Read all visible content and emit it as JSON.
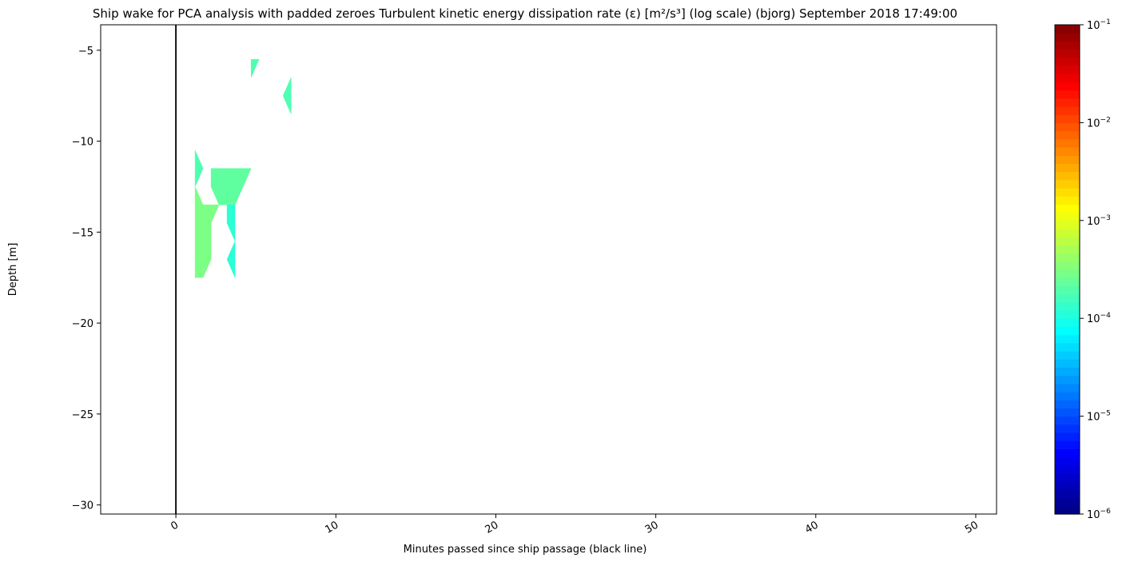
{
  "chart_data": {
    "type": "heatmap",
    "title": "Ship wake for PCA analysis with padded zeroes Turbulent kinetic energy dissipation rate (ε) [m²/s³] (log scale) (bjorg) September 2018 17:49:00",
    "xlabel": "Minutes passed since ship passage (black line)",
    "ylabel": "Depth [m]",
    "xlim": [
      -4.7,
      51.3
    ],
    "ylim": [
      -30.5,
      -3.6
    ],
    "x_ticks": [
      0,
      10,
      20,
      30,
      40,
      50
    ],
    "x_tick_labels": [
      "0",
      "10",
      "20",
      "30",
      "40",
      "50"
    ],
    "y_ticks": [
      -5,
      -10,
      -15,
      -20,
      -25,
      -30
    ],
    "y_tick_labels": [
      "−5",
      "−10",
      "−15",
      "−20",
      "−25",
      "−30"
    ],
    "ship_passage_line_x": 0,
    "colorbar": {
      "scale": "log",
      "colormap": "jet",
      "range": [
        1e-06,
        0.1
      ],
      "ticks": [
        {
          "value": 0.1,
          "base": "10",
          "exp": "−1"
        },
        {
          "value": 0.01,
          "base": "10",
          "exp": "−2"
        },
        {
          "value": 0.001,
          "base": "10",
          "exp": "−3"
        },
        {
          "value": 0.0001,
          "base": "10",
          "exp": "−4"
        },
        {
          "value": 1e-05,
          "base": "10",
          "exp": "−5"
        },
        {
          "value": 1e-06,
          "base": "10",
          "exp": "−6"
        }
      ]
    },
    "patches": [
      {
        "polygon": [
          [
            4.7,
            -5.5
          ],
          [
            5.2,
            -5.5
          ],
          [
            4.7,
            -6.5
          ]
        ],
        "value": 0.00018
      },
      {
        "polygon": [
          [
            7.2,
            -6.5
          ],
          [
            6.7,
            -7.5
          ],
          [
            7.2,
            -8.5
          ]
        ],
        "value": 0.00018
      },
      {
        "polygon": [
          [
            1.2,
            -10.5
          ],
          [
            1.7,
            -11.5
          ],
          [
            1.2,
            -12.5
          ]
        ],
        "value": 0.00018
      },
      {
        "polygon": [
          [
            2.2,
            -11.5
          ],
          [
            4.7,
            -11.5
          ],
          [
            4.2,
            -12.5
          ],
          [
            3.7,
            -13.5
          ],
          [
            2.7,
            -13.5
          ],
          [
            2.2,
            -12.5
          ]
        ],
        "value": 0.00022
      },
      {
        "polygon": [
          [
            1.2,
            -12.5
          ],
          [
            1.7,
            -13.5
          ],
          [
            2.7,
            -13.5
          ],
          [
            2.2,
            -14.5
          ],
          [
            2.2,
            -16.5
          ],
          [
            1.7,
            -17.5
          ],
          [
            1.2,
            -17.5
          ]
        ],
        "value": 0.0003
      },
      {
        "polygon": [
          [
            3.2,
            -13.5
          ],
          [
            3.7,
            -13.5
          ],
          [
            3.7,
            -17.5
          ],
          [
            3.2,
            -16.5
          ],
          [
            3.7,
            -15.5
          ],
          [
            3.2,
            -14.5
          ]
        ],
        "value": 0.00012
      }
    ]
  }
}
